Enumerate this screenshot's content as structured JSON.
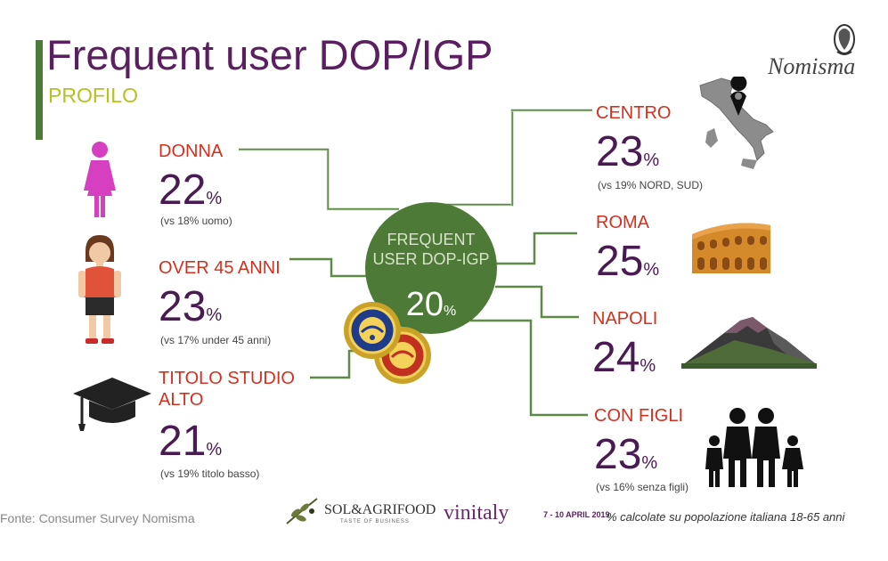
{
  "header": {
    "title": "Frequent user DOP/IGP",
    "subtitle": "PROFILO",
    "brand": "Nomisma",
    "accent_color": "#4e7a38",
    "title_color": "#5a1f5e",
    "subtitle_color": "#b5c21f"
  },
  "hub": {
    "label_line1": "FREQUENT",
    "label_line2": "USER DOP-IGP",
    "value": "20",
    "unit": "%",
    "color": "#4e7a38"
  },
  "left_items": [
    {
      "label": "DONNA",
      "value": "22",
      "unit": "%",
      "note": "(vs 18% uomo)",
      "icon": "woman-icon"
    },
    {
      "label": "OVER 45 ANNI",
      "value": "23",
      "unit": "%",
      "note": "(vs 17% under 45 anni)",
      "icon": "older-woman-icon"
    },
    {
      "label_line1": "TITOLO STUDIO",
      "label_line2": "ALTO",
      "value": "21",
      "unit": "%",
      "note": "(vs 19% titolo basso)",
      "icon": "graduation-cap-icon"
    }
  ],
  "right_items": [
    {
      "label": "CENTRO",
      "value": "23",
      "unit": "%",
      "note": "(vs 19% NORD, SUD)",
      "icon": "italy-map-icon"
    },
    {
      "label": "ROMA",
      "value": "25",
      "unit": "%",
      "icon": "colosseum-icon"
    },
    {
      "label": "NAPOLI",
      "value": "24",
      "unit": "%",
      "icon": "vesuvius-icon"
    },
    {
      "label": "CON FIGLI",
      "value": "23",
      "unit": "%",
      "note": "(vs 16% senza figli)",
      "icon": "family-icon"
    }
  ],
  "seals": [
    "dop-seal-icon",
    "igp-seal-icon"
  ],
  "footer": {
    "source": "Fonte: Consumer Survey Nomisma",
    "note": "% calcolate su popolazione italiana 18-65 anni",
    "sol_name": "SOL&AGRIFOOD",
    "sol_tagline": "TASTE OF BUSINESS",
    "vinitaly_name": "vinitaly",
    "vinitaly_dates": "7 - 10 APRIL 2019"
  },
  "label_color": "#d4301e",
  "value_color": "#4a1a52"
}
